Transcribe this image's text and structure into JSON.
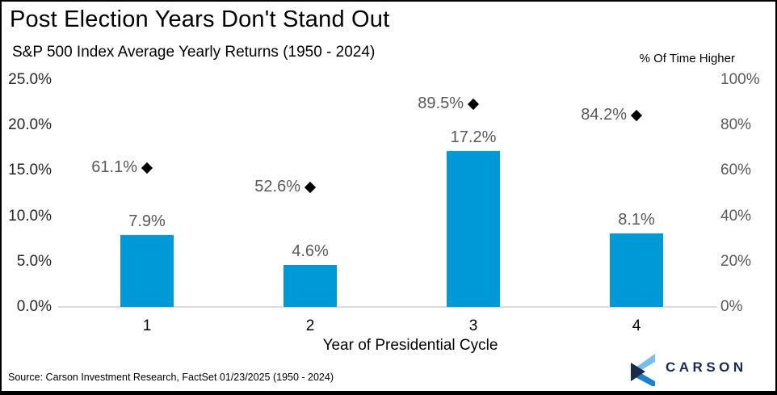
{
  "chart_data": {
    "type": "bar",
    "title": "Post Election Years Don't Stand Out",
    "subtitle": "S&P 500 Index Average Yearly Returns (1950 - 2024)",
    "categories": [
      "1",
      "2",
      "3",
      "4"
    ],
    "xlabel": "Year of Presidential Cycle",
    "series": [
      {
        "name": "S&P 500 Index Average Yearly Returns",
        "type": "bar",
        "axis": "left",
        "values": [
          7.9,
          4.6,
          17.2,
          8.1
        ],
        "labels": [
          "7.9%",
          "4.6%",
          "17.2%",
          "8.1%"
        ]
      },
      {
        "name": "% Of Time Higher",
        "type": "point-diamond",
        "axis": "right",
        "values": [
          61.1,
          52.6,
          89.5,
          84.2
        ],
        "labels": [
          "61.1%",
          "52.6%",
          "89.5%",
          "84.2%"
        ]
      }
    ],
    "left_axis": {
      "min": 0,
      "max": 25,
      "ticks": [
        "25.0%",
        "20.0%",
        "15.0%",
        "10.0%",
        "5.0%",
        "0.0%"
      ]
    },
    "right_axis": {
      "min": 0,
      "max": 100,
      "title": "% Of Time Higher",
      "ticks": [
        "100%",
        "80%",
        "60%",
        "40%",
        "20%",
        "0%"
      ]
    },
    "grid": false,
    "legend": "none"
  },
  "footer": {
    "source": "Source: Carson Investment Research, FactSet 01/23/2025 (1950 - 2024)",
    "logo_text": "CARSON"
  },
  "colors": {
    "bar": "#0099D8",
    "diamond": "#000000",
    "data_label": "#595959",
    "left_axis_text": "#262626",
    "right_axis_text": "#595959",
    "axis_line": "#DCDCDC",
    "logo_navy": "#1B2B4A",
    "logo_light_blue": "#7CBCEC",
    "logo_blue": "#1D7FD0"
  }
}
